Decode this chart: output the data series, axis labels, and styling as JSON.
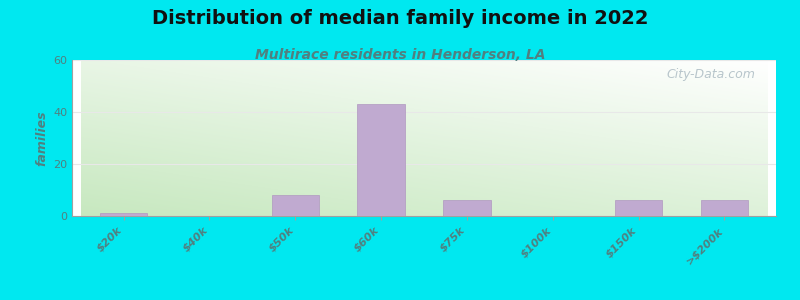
{
  "title": "Distribution of median family income in 2022",
  "subtitle": "Multirace residents in Henderson, LA",
  "categories": [
    "$20k",
    "$40k",
    "$50k",
    "$60k",
    "$75k",
    "$100k",
    "$150k",
    ">$200k"
  ],
  "values": [
    1,
    0,
    8,
    43,
    6,
    0,
    6,
    6
  ],
  "bar_color": "#c0aad0",
  "bar_edge_color": "#b098c0",
  "ylim": [
    0,
    60
  ],
  "yticks": [
    0,
    20,
    40,
    60
  ],
  "ylabel": "families",
  "background_top_right": "#ffffff",
  "background_bottom_left": "#c8e8c0",
  "outer_background": "#00e8f0",
  "title_fontsize": 14,
  "subtitle_fontsize": 10,
  "subtitle_color": "#508080",
  "watermark_text": "City-Data.com",
  "watermark_color": "#a8b8c0",
  "grid_color": "#e8e8e8",
  "tick_label_color": "#508080",
  "ylabel_color": "#508080",
  "spine_color": "#a0a0a0"
}
